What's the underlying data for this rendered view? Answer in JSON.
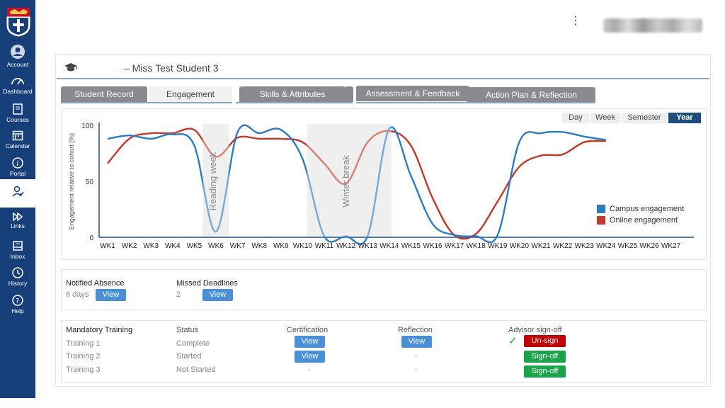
{
  "nav": {
    "items": [
      {
        "label": "Account",
        "icon": "account-icon"
      },
      {
        "label": "Dashboard",
        "icon": "dashboard-icon"
      },
      {
        "label": "Courses",
        "icon": "courses-icon"
      },
      {
        "label": "Calendar",
        "icon": "calendar-icon"
      },
      {
        "label": "Portal",
        "icon": "portal-icon"
      },
      {
        "label": "",
        "icon": "student-advisor-icon"
      },
      {
        "label": "Links",
        "icon": "links-icon"
      },
      {
        "label": "Inbox",
        "icon": "inbox-icon"
      },
      {
        "label": "History",
        "icon": "history-icon"
      },
      {
        "label": "Help",
        "icon": "help-icon"
      }
    ]
  },
  "student": {
    "name": "– Miss Test Student 3"
  },
  "tabs": [
    "Student Record",
    "Engagement",
    "Skills & Attributes",
    "Assessment & Feedback",
    "Action Plan & Reflection"
  ],
  "period": {
    "options": [
      "Day",
      "Week",
      "Semester",
      "Year"
    ],
    "selected": "Year"
  },
  "colors": {
    "nav": "#163f7a",
    "campus": "#2b7bc4",
    "online": "#c0392b",
    "accent": "#1e4f7c"
  },
  "chart_data": {
    "type": "line",
    "ylabel": "Engagement relative to cohort (%)",
    "ylim": [
      0,
      100
    ],
    "y_ticks": [
      "100",
      "50",
      "0"
    ],
    "categories": [
      "WK1",
      "WK2",
      "WK3",
      "WK4",
      "WK5",
      "WK6",
      "WK7",
      "WK8",
      "WK9",
      "WK10",
      "WK11",
      "WK12",
      "WK13",
      "WK14",
      "WK15",
      "WK16",
      "WK17",
      "WK18",
      "WK19",
      "WK20",
      "WK21",
      "WK22",
      "WK23",
      "WK24",
      "WK25",
      "WK26",
      "WK27"
    ],
    "bands": [
      {
        "label": "Reading week",
        "from": 4.4,
        "to": 5.6
      },
      {
        "label": "Winter break",
        "from": 9.2,
        "to": 13.1
      }
    ],
    "series": [
      {
        "name": "Campus engagement",
        "color": "#2b7bc4",
        "values": [
          88,
          91,
          88,
          92,
          82,
          5,
          94,
          93,
          96,
          70,
          1,
          1,
          1,
          97,
          55,
          12,
          2,
          1,
          2,
          85,
          93,
          94,
          90,
          87,
          null,
          null,
          null
        ]
      },
      {
        "name": "Online engagement",
        "color": "#c0392b",
        "values": [
          66,
          88,
          93,
          93,
          96,
          72,
          89,
          88,
          88,
          85,
          66,
          48,
          85,
          95,
          82,
          35,
          2,
          3,
          32,
          63,
          73,
          74,
          85,
          86,
          null,
          null,
          null
        ]
      }
    ],
    "legend": "right"
  },
  "absence": {
    "notified_label": "Notified Absence",
    "notified_value": "6 days",
    "missed_label": "Missed Deadlines",
    "missed_value": "2",
    "view": "View"
  },
  "training": {
    "headers": [
      "Mandatory Training",
      "Status",
      "Certification",
      "Reflection",
      "Advisor sign-off"
    ],
    "rows": [
      {
        "name": "Training 1",
        "status": "Complete",
        "cert": "View",
        "refl": "View",
        "signoff": "Un-sign"
      },
      {
        "name": "Training 2",
        "status": "Started",
        "cert": "View",
        "refl": "-",
        "signoff": "Sign-off"
      },
      {
        "name": "Training 3",
        "status": "Not Started",
        "cert": "-",
        "refl": "-",
        "signoff": "Sign-off"
      }
    ]
  }
}
